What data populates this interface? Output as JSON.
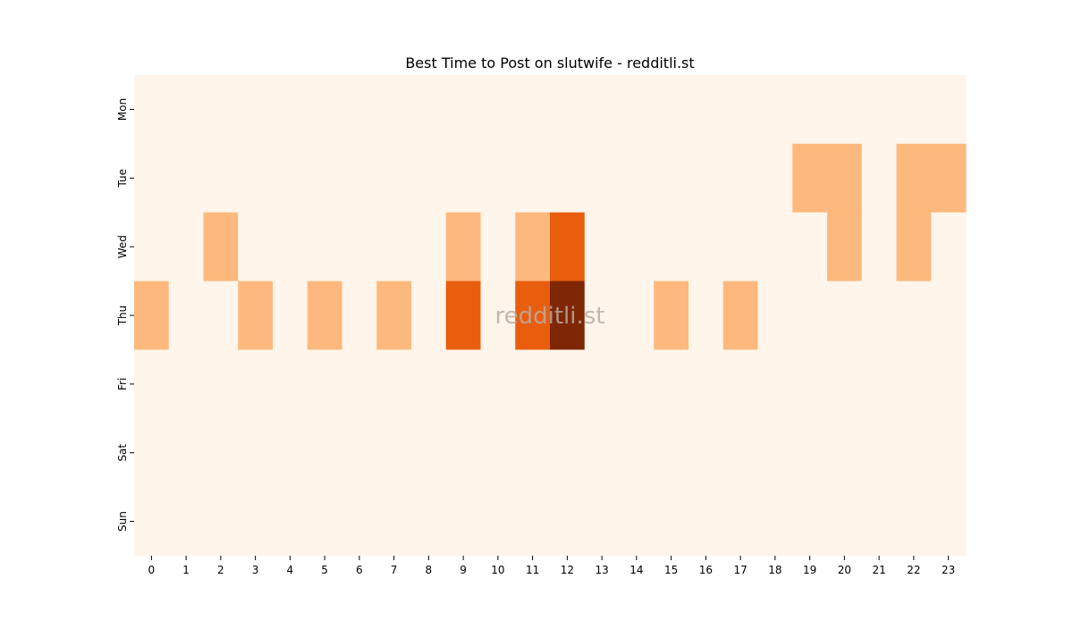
{
  "chart_data": {
    "type": "heatmap",
    "title": "Best Time to Post on slutwife - redditli.st",
    "xlabel": "",
    "ylabel": "",
    "x_categories": [
      "0",
      "1",
      "2",
      "3",
      "4",
      "5",
      "6",
      "7",
      "8",
      "9",
      "10",
      "11",
      "12",
      "13",
      "14",
      "15",
      "16",
      "17",
      "18",
      "19",
      "20",
      "21",
      "22",
      "23"
    ],
    "y_categories": [
      "Mon",
      "Tue",
      "Wed",
      "Thu",
      "Fri",
      "Sat",
      "Sun"
    ],
    "values": [
      [
        0,
        0,
        0,
        0,
        0,
        0,
        0,
        0,
        0,
        0,
        0,
        0,
        0,
        0,
        0,
        0,
        0,
        0,
        0,
        0,
        0,
        0,
        0,
        0
      ],
      [
        0,
        0,
        0,
        0,
        0,
        0,
        0,
        0,
        0,
        0,
        0,
        0,
        0,
        0,
        0,
        0,
        0,
        0,
        0,
        1,
        1,
        0,
        1,
        1
      ],
      [
        0,
        0,
        1,
        0,
        0,
        0,
        0,
        0,
        0,
        1,
        0,
        1,
        2,
        0,
        0,
        0,
        0,
        0,
        0,
        0,
        1,
        0,
        1,
        0
      ],
      [
        1,
        0,
        0,
        1,
        0,
        1,
        0,
        1,
        0,
        2,
        0,
        2,
        3,
        0,
        0,
        1,
        0,
        1,
        0,
        0,
        0,
        0,
        0,
        0
      ],
      [
        0,
        0,
        0,
        0,
        0,
        0,
        0,
        0,
        0,
        0,
        0,
        0,
        0,
        0,
        0,
        0,
        0,
        0,
        0,
        0,
        0,
        0,
        0,
        0
      ],
      [
        0,
        0,
        0,
        0,
        0,
        0,
        0,
        0,
        0,
        0,
        0,
        0,
        0,
        0,
        0,
        0,
        0,
        0,
        0,
        0,
        0,
        0,
        0,
        0
      ],
      [
        0,
        0,
        0,
        0,
        0,
        0,
        0,
        0,
        0,
        0,
        0,
        0,
        0,
        0,
        0,
        0,
        0,
        0,
        0,
        0,
        0,
        0,
        0,
        0
      ]
    ],
    "value_range": [
      0,
      3
    ],
    "colormap": [
      "#fff5eb",
      "#fdb97d",
      "#e95e0d",
      "#7f2704"
    ],
    "grid": false,
    "legend": "none"
  },
  "watermark": {
    "text": "redditli.st",
    "color": "#b8aca3"
  }
}
